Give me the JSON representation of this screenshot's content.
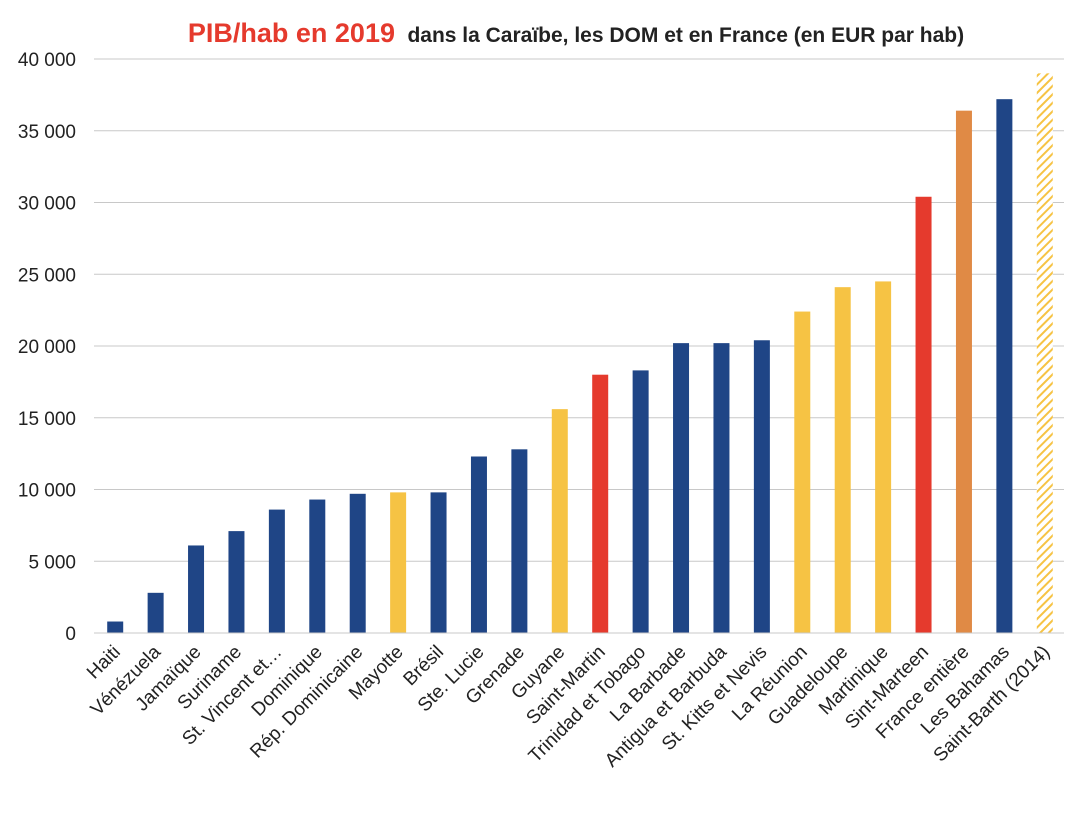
{
  "chart_data": {
    "type": "bar",
    "title_highlight": "PIB/hab en 2019",
    "title_rest": "dans la Caraïbe, les DOM et en France (en EUR par hab)",
    "xlabel": "",
    "ylabel": "",
    "ylim": [
      0,
      40000
    ],
    "yticks": [
      0,
      5000,
      10000,
      15000,
      20000,
      25000,
      30000,
      35000,
      40000
    ],
    "ytick_labels": [
      "0",
      "5 000",
      "10 000",
      "15 000",
      "20 000",
      "25 000",
      "30 000",
      "35 000",
      "40 000"
    ],
    "grid": true,
    "legend": "none",
    "categories": [
      "Haiti",
      "Vénézuela",
      "Jamaïque",
      "Suriname",
      "St. Vincent et…",
      "Dominique",
      "Rép. Dominicaine",
      "Mayotte",
      "Brésil",
      "Ste. Lucie",
      "Grenade",
      "Guyane",
      "Saint-Martin",
      "Trinidad et Tobago",
      "La Barbade",
      "Antigua et Barbuda",
      "St. Kitts et Nevis",
      "La Réunion",
      "Guadeloupe",
      "Martinique",
      "Sint-Marteen",
      "France entière",
      "Les Bahamas",
      "Saint-Barth (2014)"
    ],
    "values": [
      800,
      2800,
      6100,
      7100,
      8600,
      9300,
      9700,
      9800,
      9800,
      12300,
      12800,
      15600,
      18000,
      18300,
      20200,
      20200,
      20400,
      22400,
      24100,
      24500,
      30400,
      36400,
      37200,
      39000
    ],
    "colors": [
      "#1f4586",
      "#1f4586",
      "#1f4586",
      "#1f4586",
      "#1f4586",
      "#1f4586",
      "#1f4586",
      "#f6c344",
      "#1f4586",
      "#1f4586",
      "#1f4586",
      "#f6c344",
      "#e53a2d",
      "#1f4586",
      "#1f4586",
      "#1f4586",
      "#1f4586",
      "#f6c344",
      "#f6c344",
      "#f6c344",
      "#e53a2d",
      "#e08a45",
      "#1f4586",
      "hatch"
    ],
    "hatch_color": "#f6c344",
    "title_highlight_color": "#e53a2d",
    "grid_color": "#c8c8c8"
  }
}
